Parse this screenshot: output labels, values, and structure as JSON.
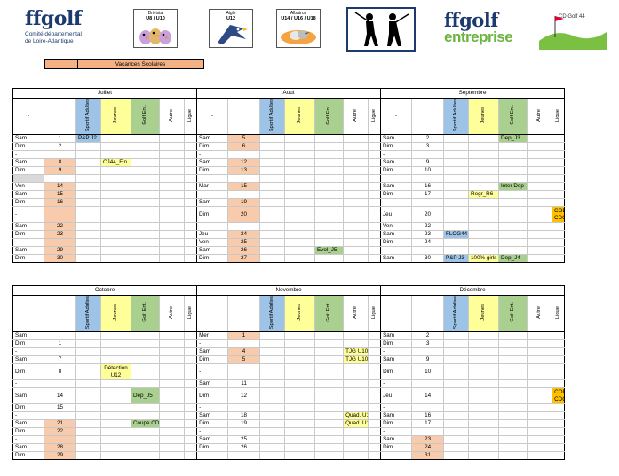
{
  "header": {
    "ffgolf_brand": "ffgolf",
    "ffgolf_sub1": "Comité départemental",
    "ffgolf_sub2": "de Loire-Atlantique",
    "badge1_line1": "Drivista",
    "badge1_line2": "U8 / U10",
    "badge2_line1": "Aigle",
    "badge2_line2": "U12",
    "badge3_line1": "Albatros",
    "badge3_line2": "U14 / U16 / U18",
    "ent_brand": "ffgolf",
    "ent_sub": "entreprise",
    "cdg_label": "CD Golf 44"
  },
  "legend": {
    "label": "Vacances Scolaires",
    "color": "#f4b183"
  },
  "columns": {
    "dash": "-",
    "sportif": "Sportif Adultes",
    "jeunes": "Jeunes",
    "golf_ent": "Golf Ent.",
    "autre": "Autre",
    "ligue": "Ligue"
  },
  "sections": [
    {
      "months": [
        "Juillet",
        "Aout",
        "Septembre"
      ],
      "rows": [
        [
          [
            "Sam",
            "1",
            "",
            "P&P J2",
            "",
            "",
            "",
            ""
          ],
          [
            "Sam",
            "5",
            "v",
            "",
            "",
            "",
            "",
            ""
          ],
          [
            "Sam",
            "2",
            "",
            "",
            "",
            "Dep_J3",
            "",
            ""
          ]
        ],
        [
          [
            "Dim",
            "2",
            "",
            "",
            "",
            "",
            "",
            ""
          ],
          [
            "Dim",
            "6",
            "v",
            "",
            "",
            "",
            "",
            ""
          ],
          [
            "Dim",
            "3",
            "",
            "",
            "",
            "",
            "",
            ""
          ]
        ],
        [
          [
            "-",
            "",
            "",
            "",
            "",
            "",
            "",
            ""
          ],
          [
            "-",
            "",
            "",
            "",
            "",
            "",
            "",
            ""
          ],
          [
            "-",
            "",
            "",
            "",
            "",
            "",
            "",
            ""
          ]
        ],
        [
          [
            "Sam",
            "8",
            "v",
            "",
            "CJ44_Fin",
            "",
            "",
            ""
          ],
          [
            "Sam",
            "12",
            "v",
            "",
            "",
            "",
            "",
            ""
          ],
          [
            "Sam",
            "9",
            "",
            "",
            "",
            "",
            "",
            ""
          ]
        ],
        [
          [
            "Dim",
            "9",
            "v",
            "",
            "",
            "",
            "",
            ""
          ],
          [
            "Dim",
            "13",
            "v",
            "",
            "",
            "",
            "",
            ""
          ],
          [
            "Dim",
            "10",
            "",
            "",
            "",
            "",
            "",
            ""
          ]
        ],
        [
          [
            "-",
            "",
            "g",
            "",
            "",
            "",
            "",
            ""
          ],
          [
            "-",
            "",
            "",
            "",
            "",
            "",
            "",
            ""
          ],
          [
            "-",
            "",
            "",
            "",
            "",
            "",
            "",
            ""
          ]
        ],
        [
          [
            "Ven",
            "14",
            "v",
            "",
            "",
            "",
            "",
            ""
          ],
          [
            "Mar",
            "15",
            "v",
            "",
            "",
            "",
            "",
            ""
          ],
          [
            "Sam",
            "16",
            "",
            "",
            "",
            "Inter Dep",
            "",
            ""
          ]
        ],
        [
          [
            "Sam",
            "15",
            "v",
            "",
            "",
            "",
            "",
            ""
          ],
          [
            "-",
            "",
            "",
            "",
            "",
            "",
            "",
            ""
          ],
          [
            "Dim",
            "17",
            "",
            "",
            "Regr_R6",
            "",
            "",
            ""
          ]
        ],
        [
          [
            "Dim",
            "16",
            "v",
            "",
            "",
            "",
            "",
            ""
          ],
          [
            "Sam",
            "19",
            "v",
            "",
            "",
            "",
            "",
            ""
          ],
          [
            "-",
            "",
            "",
            "",
            "",
            "",
            "",
            ""
          ]
        ],
        [
          [
            "-",
            "",
            "v",
            "",
            "",
            "",
            "",
            ""
          ],
          [
            "Dim",
            "20",
            "v",
            "",
            "",
            "",
            "",
            ""
          ],
          [
            "Jeu",
            "20",
            "",
            "",
            "",
            "",
            "",
            "CODIR CDG44"
          ]
        ],
        [
          [
            "Sam",
            "22",
            "v",
            "",
            "",
            "",
            "",
            ""
          ],
          [
            "-",
            "",
            "",
            "",
            "",
            "",
            "",
            ""
          ],
          [
            "Ven",
            "22",
            "",
            "",
            "",
            "",
            "",
            ""
          ]
        ],
        [
          [
            "Dim",
            "23",
            "v",
            "",
            "",
            "",
            "",
            ""
          ],
          [
            "Jeu",
            "24",
            "v",
            "",
            "",
            "",
            "",
            ""
          ],
          [
            "Sam",
            "23",
            "",
            "FLOG44",
            "",
            "",
            "",
            ""
          ]
        ],
        [
          [
            "-",
            "",
            "v",
            "",
            "",
            "",
            "",
            ""
          ],
          [
            "Ven",
            "25",
            "v",
            "",
            "",
            "",
            "",
            ""
          ],
          [
            "Dim",
            "24",
            "",
            "",
            "",
            "",
            "",
            ""
          ]
        ],
        [
          [
            "Sam",
            "29",
            "v",
            "",
            "",
            "",
            "",
            ""
          ],
          [
            "Sam",
            "26",
            "v",
            "",
            "",
            "Evol_J5",
            "",
            ""
          ],
          [
            "-",
            "",
            "",
            "",
            "",
            "",
            "",
            ""
          ]
        ],
        [
          [
            "Dim",
            "30",
            "v",
            "",
            "",
            "",
            "",
            ""
          ],
          [
            "Dim",
            "27",
            "v",
            "",
            "",
            "",
            "",
            ""
          ],
          [
            "Sam",
            "30",
            "",
            "P&P J3",
            "100% girls",
            "Dep_J4",
            "",
            ""
          ]
        ]
      ]
    },
    {
      "months": [
        "Octobre",
        "Novembre",
        "Décembre"
      ],
      "rows": [
        [
          [
            "Sam",
            "",
            "",
            "",
            "",
            "",
            "",
            ""
          ],
          [
            "Mer",
            "1",
            "v",
            "",
            "",
            "",
            "",
            ""
          ],
          [
            "Sam",
            "2",
            "",
            "",
            "",
            "",
            "",
            ""
          ]
        ],
        [
          [
            "Dim",
            "1",
            "",
            "",
            "",
            "",
            "",
            ""
          ],
          [
            "-",
            "",
            "",
            "",
            "",
            "",
            "",
            ""
          ],
          [
            "Dim",
            "3",
            "",
            "",
            "",
            "",
            "",
            ""
          ]
        ],
        [
          [
            "-",
            "",
            "",
            "",
            "",
            "",
            "",
            ""
          ],
          [
            "Sam",
            "4",
            "v",
            "",
            "",
            "",
            "TJG U10",
            ""
          ],
          [
            "-",
            "",
            "",
            "",
            "",
            "",
            "",
            ""
          ]
        ],
        [
          [
            "Sam",
            "7",
            "",
            "",
            "",
            "",
            "",
            ""
          ],
          [
            "Dim",
            "5",
            "v",
            "",
            "",
            "",
            "TJG U10",
            ""
          ],
          [
            "Sam",
            "9",
            "",
            "",
            "",
            "",
            "",
            ""
          ]
        ],
        [
          [
            "Dim",
            "8",
            "",
            "",
            "Détection U12",
            "",
            "",
            ""
          ],
          [
            "-",
            "",
            "",
            "",
            "",
            "",
            "",
            ""
          ],
          [
            "Dim",
            "10",
            "",
            "",
            "",
            "",
            "",
            ""
          ]
        ],
        [
          [
            "-",
            "",
            "",
            "",
            "",
            "",
            "",
            ""
          ],
          [
            "Sam",
            "11",
            "",
            "",
            "",
            "",
            "",
            ""
          ],
          [
            "-",
            "",
            "",
            "",
            "",
            "",
            "",
            ""
          ]
        ],
        [
          [
            "Sam",
            "14",
            "",
            "",
            "",
            "Dep_J5",
            "",
            ""
          ],
          [
            "Dim",
            "12",
            "",
            "",
            "",
            "",
            "",
            ""
          ],
          [
            "Jeu",
            "14",
            "",
            "",
            "",
            "",
            "",
            "CODIR CDG44"
          ]
        ],
        [
          [
            "Dim",
            "15",
            "",
            "",
            "",
            "",
            "",
            ""
          ],
          [
            "-",
            "",
            "",
            "",
            "",
            "",
            "",
            ""
          ],
          [
            "-",
            "",
            "",
            "",
            "",
            "",
            "",
            ""
          ]
        ],
        [
          [
            "-",
            "",
            "",
            "",
            "",
            "",
            "",
            ""
          ],
          [
            "Sam",
            "18",
            "",
            "",
            "",
            "",
            "Quad. U10",
            ""
          ],
          [
            "Sam",
            "16",
            "",
            "",
            "",
            "",
            "",
            ""
          ]
        ],
        [
          [
            "Sam",
            "21",
            "v",
            "",
            "",
            "Coupe CD",
            "",
            ""
          ],
          [
            "Dim",
            "19",
            "",
            "",
            "",
            "",
            "Quad. U10",
            ""
          ],
          [
            "Dim",
            "17",
            "",
            "",
            "",
            "",
            "",
            ""
          ]
        ],
        [
          [
            "Dim",
            "22",
            "v",
            "",
            "",
            "",
            "",
            ""
          ],
          [
            "-",
            "",
            "",
            "",
            "",
            "",
            "",
            ""
          ],
          [
            "-",
            "",
            "",
            "",
            "",
            "",
            "",
            ""
          ]
        ],
        [
          [
            "-",
            "",
            "v",
            "",
            "",
            "",
            "",
            ""
          ],
          [
            "Sam",
            "25",
            "",
            "",
            "",
            "",
            "",
            ""
          ],
          [
            "Sam",
            "23",
            "v",
            "",
            "",
            "",
            "",
            ""
          ]
        ],
        [
          [
            "Sam",
            "28",
            "v",
            "",
            "",
            "",
            "",
            ""
          ],
          [
            "Dim",
            "26",
            "",
            "",
            "",
            "",
            "",
            ""
          ],
          [
            "Dim",
            "24",
            "v",
            "",
            "",
            "",
            "",
            ""
          ]
        ],
        [
          [
            "Dim",
            "29",
            "v",
            "",
            "",
            "",
            "",
            ""
          ],
          [
            "",
            "",
            "",
            "",
            "",
            "",
            "",
            ""
          ],
          [
            "",
            "31",
            "v",
            "",
            "",
            "",
            "",
            ""
          ]
        ]
      ]
    }
  ],
  "colors": {
    "vacances": "#f8cbad",
    "sportif": "#9dc3e6",
    "jeunes": "#ffff99",
    "golf_ent": "#a9d08e",
    "ligue": "#ffc000"
  }
}
